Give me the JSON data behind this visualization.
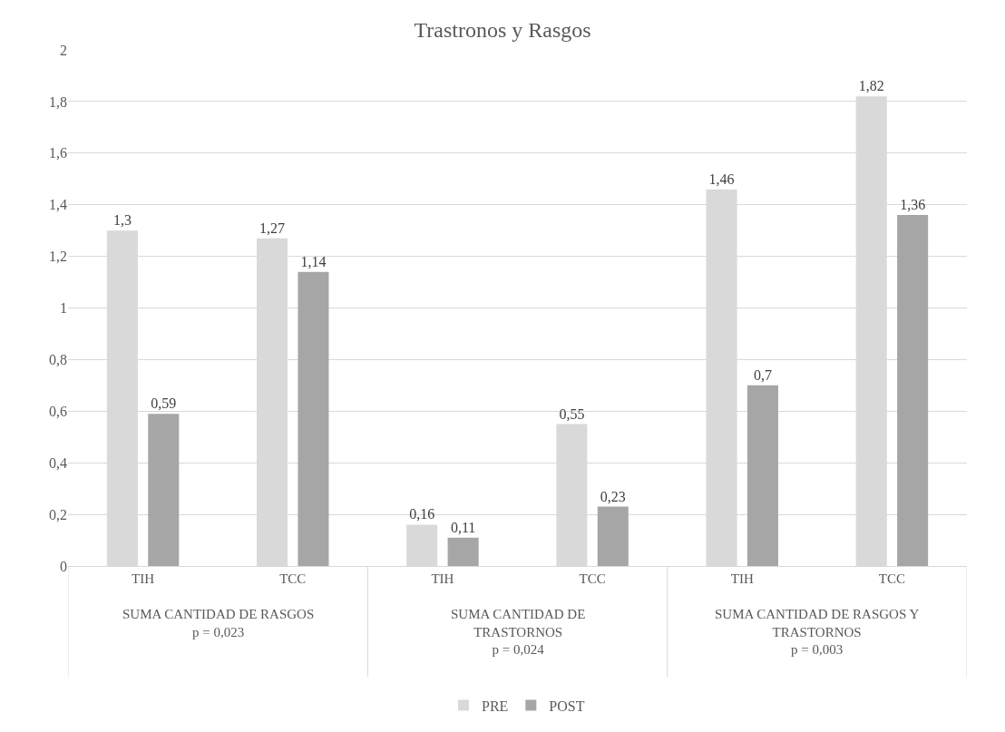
{
  "chart_data": {
    "type": "bar",
    "title": "Trastronos y Rasgos",
    "categories": [
      "TIH",
      "TCC",
      "TIH",
      "TCC",
      "TIH",
      "TCC"
    ],
    "series": [
      {
        "name": "PRE",
        "color": "#d9d9d9",
        "values": [
          1.3,
          1.27,
          0.16,
          0.55,
          1.46,
          1.82
        ],
        "value_labels": [
          "1,3",
          "1,27",
          "0,16",
          "0,55",
          "1,46",
          "1,82"
        ]
      },
      {
        "name": "POST",
        "color": "#a6a6a6",
        "values": [
          0.59,
          1.14,
          0.11,
          0.23,
          0.7,
          1.36
        ],
        "value_labels": [
          "0,59",
          "1,14",
          "0,11",
          "0,23",
          "0,7",
          "1,36"
        ]
      }
    ],
    "ylim": [
      0,
      2
    ],
    "yticks": [
      0,
      {
        "value": 0.2,
        "label": "0,2"
      },
      {
        "value": 0.4,
        "label": "0,4"
      },
      {
        "value": 0.6,
        "label": "0,6"
      },
      {
        "value": 0.8,
        "label": "0,8"
      },
      1,
      {
        "value": 1.2,
        "label": "1,2"
      },
      {
        "value": 1.4,
        "label": "1,4"
      },
      {
        "value": 1.6,
        "label": "1,6"
      },
      {
        "value": 1.8,
        "label": "1,8"
      },
      2
    ],
    "annotations": [
      "SUMA CANTIDAD DE RASGOS\np = 0,023",
      "SUMA CANTIDAD DE\nTRASTORNOS\np = 0,024",
      "SUMA CANTIDAD DE RASGOS Y\nTRASTORNOS\np = 0,003"
    ],
    "grid": "y",
    "legend": "bottom"
  }
}
